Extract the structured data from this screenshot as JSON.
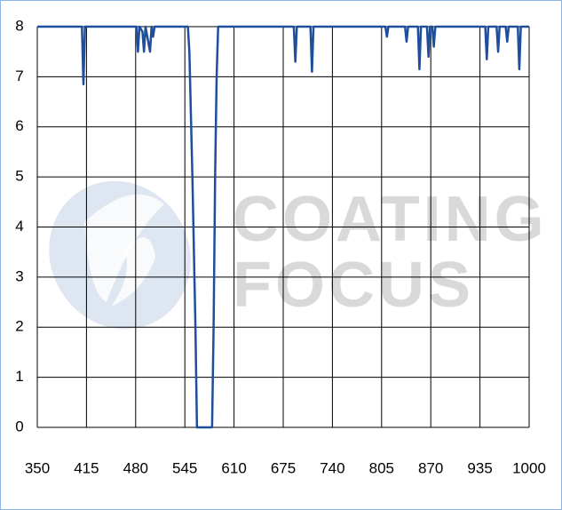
{
  "chart_data": {
    "type": "line",
    "watermark": [
      "COATING",
      "FOCUS"
    ],
    "x": [
      350,
      409,
      411,
      413,
      481,
      483,
      485,
      489,
      491,
      493,
      499,
      501,
      503,
      505,
      549,
      551,
      555,
      559,
      561,
      581,
      583,
      585,
      587,
      589,
      689,
      691,
      693,
      711,
      713,
      715,
      810,
      812,
      814,
      836,
      838,
      840,
      853,
      855,
      857,
      865,
      867,
      869,
      872,
      874,
      876,
      942,
      944,
      946,
      957,
      959,
      961,
      969,
      971,
      973,
      985,
      987,
      989,
      1000
    ],
    "series": [
      {
        "color": "#1f4e9c",
        "values": [
          8,
          8,
          6.85,
          8,
          8,
          7.5,
          8,
          7.9,
          7.5,
          8,
          7.5,
          8,
          7.8,
          8,
          8,
          7.5,
          5,
          2,
          0,
          0,
          2,
          5,
          7,
          8,
          8,
          7.3,
          8,
          8,
          7.1,
          8,
          8,
          7.8,
          8,
          8,
          7.7,
          8,
          8,
          7.15,
          8,
          8,
          7.4,
          8,
          8,
          7.6,
          8,
          8,
          7.35,
          8,
          8,
          7.5,
          8,
          8,
          7.7,
          8,
          8,
          7.15,
          8,
          8
        ]
      }
    ],
    "xlim": [
      350,
      1000
    ],
    "xticks": [
      350,
      415,
      480,
      545,
      610,
      675,
      740,
      805,
      870,
      935,
      1000
    ],
    "ylim": [
      0,
      8
    ],
    "yticks": [
      0,
      1,
      2,
      3,
      4,
      5,
      6,
      7,
      8
    ],
    "grid": true
  }
}
